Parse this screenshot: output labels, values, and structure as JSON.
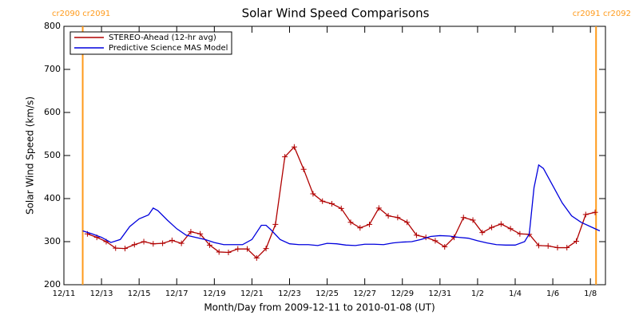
{
  "chart_data": {
    "type": "line",
    "title": "Solar Wind Speed Comparisons",
    "x_label": "Month/Day from 2009-12-11 to 2010-01-08 (UT)",
    "y_label": "Solar Wind Speed (km/s)",
    "xlim": [
      0,
      28.8
    ],
    "ylim": [
      200,
      800
    ],
    "yticks": [
      200,
      300,
      400,
      500,
      600,
      700,
      800
    ],
    "xticks": [
      {
        "value": 0,
        "label": "12/11"
      },
      {
        "value": 2,
        "label": "12/13"
      },
      {
        "value": 4,
        "label": "12/15"
      },
      {
        "value": 6,
        "label": "12/17"
      },
      {
        "value": 8,
        "label": "12/19"
      },
      {
        "value": 10,
        "label": "12/21"
      },
      {
        "value": 12,
        "label": "12/23"
      },
      {
        "value": 14,
        "label": "12/25"
      },
      {
        "value": 16,
        "label": "12/27"
      },
      {
        "value": 18,
        "label": "12/29"
      },
      {
        "value": 20,
        "label": "12/31"
      },
      {
        "value": 22,
        "label": "1/2"
      },
      {
        "value": 24,
        "label": "1/4"
      },
      {
        "value": 26,
        "label": "1/6"
      },
      {
        "value": 28,
        "label": "1/8"
      }
    ],
    "legend": "upper left",
    "annotations": [
      {
        "x": 1,
        "label": "cr2090 cr2091",
        "color": "#ff9a1a"
      },
      {
        "x": 28.3,
        "label": "cr2091 cr2092",
        "color": "#ff9a1a"
      }
    ],
    "series": [
      {
        "name": "STEREO-Ahead (12-hr avg)",
        "color": "#b00000",
        "markers": true,
        "x": [
          1.25,
          1.75,
          2.25,
          2.75,
          3.25,
          3.75,
          4.25,
          4.75,
          5.25,
          5.75,
          6.25,
          6.75,
          7.25,
          7.75,
          8.25,
          8.75,
          9.25,
          9.75,
          10.25,
          10.75,
          11.25,
          11.75,
          12.25,
          12.75,
          13.25,
          13.75,
          14.25,
          14.75,
          15.25,
          15.75,
          16.25,
          16.75,
          17.25,
          17.75,
          18.25,
          18.75,
          19.25,
          19.75,
          20.25,
          20.75,
          21.25,
          21.75,
          22.25,
          22.75,
          23.25,
          23.75,
          24.25,
          24.75,
          25.25,
          25.75,
          26.25,
          26.75,
          27.25,
          27.75,
          28.25
        ],
        "values": [
          318,
          310,
          300,
          285,
          284,
          293,
          300,
          295,
          296,
          303,
          296,
          323,
          318,
          292,
          276,
          275,
          283,
          283,
          262,
          284,
          340,
          497,
          520,
          468,
          411,
          394,
          388,
          377,
          345,
          332,
          340,
          378,
          360,
          356,
          345,
          315,
          310,
          302,
          288,
          310,
          356,
          350,
          321,
          333,
          341,
          330,
          318,
          317,
          291,
          290,
          286,
          286,
          301,
          363,
          368
        ]
      },
      {
        "name": "Predictive Science MAS Model",
        "color": "#0000dd",
        "markers": false,
        "x": [
          1,
          1.5,
          2,
          2.5,
          3,
          3.5,
          4,
          4.5,
          4.75,
          5,
          5.5,
          6,
          6.5,
          7,
          7.5,
          8,
          8.5,
          9,
          9.5,
          10,
          10.5,
          10.75,
          11,
          11.5,
          12,
          12.5,
          13,
          13.5,
          14,
          14.5,
          15,
          15.5,
          16,
          16.5,
          17,
          17.5,
          18,
          18.5,
          19,
          19.5,
          20,
          20.5,
          21,
          21.5,
          22,
          22.5,
          23,
          23.5,
          24,
          24.5,
          24.75,
          25,
          25.25,
          25.5,
          26,
          26.5,
          27,
          27.5,
          28,
          28.5
        ],
        "values": [
          325,
          318,
          310,
          298,
          305,
          335,
          353,
          362,
          378,
          372,
          350,
          330,
          315,
          310,
          305,
          298,
          293,
          293,
          293,
          305,
          338,
          338,
          328,
          305,
          295,
          293,
          293,
          291,
          296,
          295,
          292,
          291,
          294,
          294,
          293,
          297,
          299,
          300,
          305,
          312,
          314,
          313,
          310,
          308,
          302,
          297,
          293,
          292,
          292,
          300,
          318,
          425,
          478,
          470,
          430,
          390,
          360,
          345,
          335,
          325
        ]
      }
    ]
  }
}
